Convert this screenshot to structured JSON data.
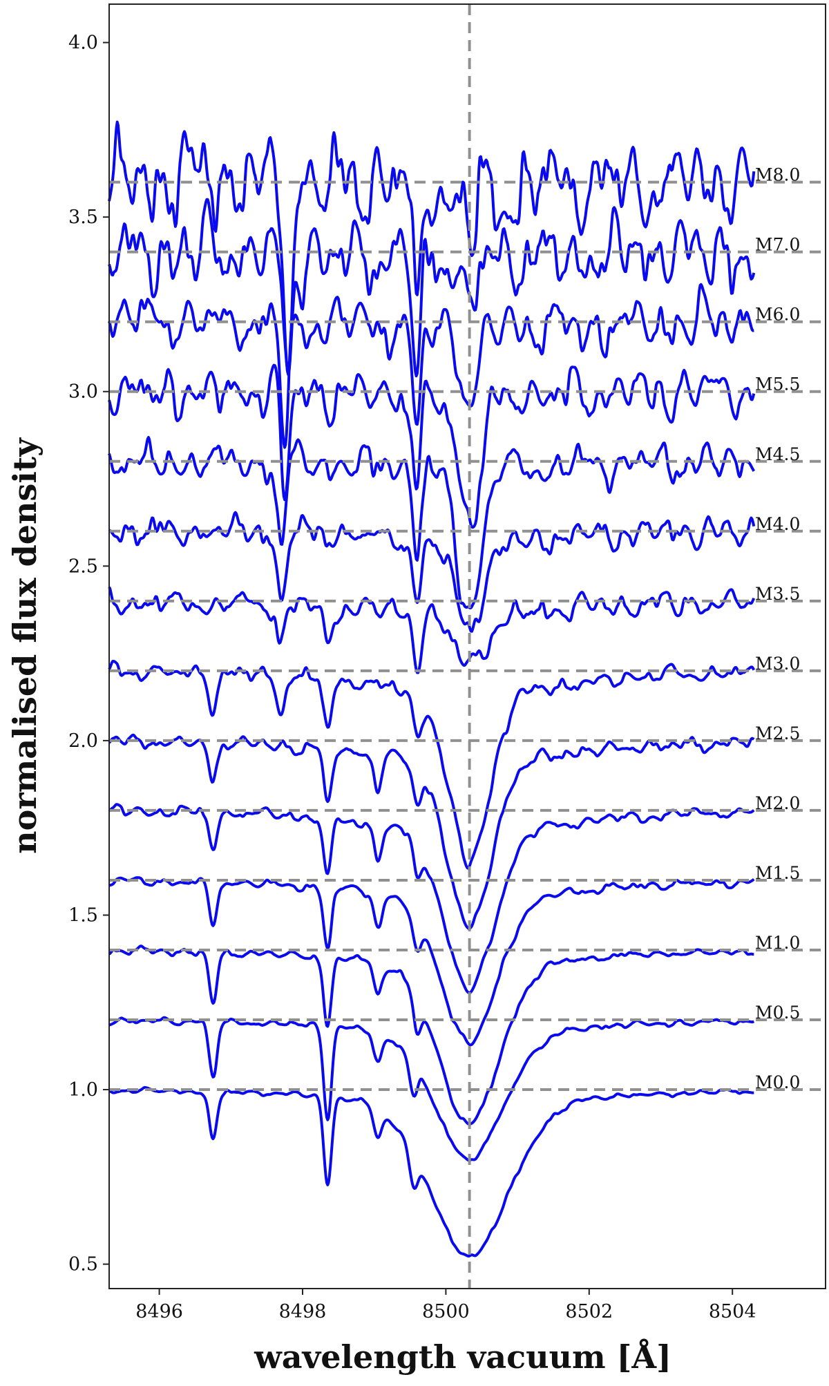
{
  "chart_data": {
    "type": "line",
    "xlabel": "wavelength vacuum [Å]",
    "ylabel": "normalised flux density",
    "xlim": [
      8495.3,
      8505.3
    ],
    "ylim": [
      0.43,
      4.11
    ],
    "x_ticks": [
      8496,
      8498,
      8500,
      8502,
      8504
    ],
    "x_tick_labels": [
      "8496",
      "8498",
      "8500",
      "8502",
      "8504"
    ],
    "y_ticks": [
      0.5,
      1.0,
      1.5,
      2.0,
      2.5,
      3.0,
      3.5,
      4.0
    ],
    "y_tick_labels": [
      "0.5",
      "1.0",
      "1.5",
      "2.0",
      "2.5",
      "3.0",
      "3.5",
      "4.0"
    ],
    "x_range_data": [
      8495.3,
      8504.3
    ],
    "line_center": 8500.33,
    "reference_lines": [
      {
        "label": "M0.0",
        "y": 1.0
      },
      {
        "label": "M0.5",
        "y": 1.2
      },
      {
        "label": "M1.0",
        "y": 1.4
      },
      {
        "label": "M1.5",
        "y": 1.6
      },
      {
        "label": "M2.0",
        "y": 1.8
      },
      {
        "label": "M2.5",
        "y": 2.0
      },
      {
        "label": "M3.0",
        "y": 2.2
      },
      {
        "label": "M3.5",
        "y": 2.4
      },
      {
        "label": "M4.0",
        "y": 2.6
      },
      {
        "label": "M4.5",
        "y": 2.8
      },
      {
        "label": "M5.5",
        "y": 3.0
      },
      {
        "label": "M6.0",
        "y": 3.2
      },
      {
        "label": "M7.0",
        "y": 3.4
      },
      {
        "label": "M8.0",
        "y": 3.6
      }
    ],
    "series": [
      {
        "name": "M0.0",
        "offset": 1.0,
        "line_depth": 0.4,
        "line_width": 0.55,
        "wing_depth": 0.08,
        "noise": 0.01,
        "features": [
          [
            8496.75,
            0.14
          ],
          [
            8498.35,
            0.25
          ],
          [
            8499.05,
            0.08
          ],
          [
            8499.55,
            0.08
          ]
        ]
      },
      {
        "name": "M0.5",
        "offset": 1.2,
        "line_depth": 0.33,
        "line_width": 0.48,
        "wing_depth": 0.07,
        "noise": 0.012,
        "features": [
          [
            8496.75,
            0.16
          ],
          [
            8498.35,
            0.26
          ],
          [
            8499.05,
            0.09
          ],
          [
            8499.55,
            0.09
          ]
        ]
      },
      {
        "name": "M1.0",
        "offset": 1.4,
        "line_depth": 0.42,
        "line_width": 0.42,
        "wing_depth": 0.08,
        "noise": 0.014,
        "features": [
          [
            8496.75,
            0.15
          ],
          [
            8498.35,
            0.2
          ],
          [
            8499.05,
            0.09
          ],
          [
            8499.6,
            0.1
          ]
        ]
      },
      {
        "name": "M1.5",
        "offset": 1.6,
        "line_depth": 0.38,
        "line_width": 0.38,
        "wing_depth": 0.09,
        "noise": 0.016,
        "features": [
          [
            8496.75,
            0.12
          ],
          [
            8498.35,
            0.17
          ],
          [
            8499.05,
            0.1
          ],
          [
            8499.6,
            0.1
          ]
        ]
      },
      {
        "name": "M2.0",
        "offset": 1.8,
        "line_depth": 0.42,
        "line_width": 0.34,
        "wing_depth": 0.1,
        "noise": 0.02,
        "features": [
          [
            8496.75,
            0.1
          ],
          [
            8498.35,
            0.17
          ],
          [
            8499.05,
            0.1
          ],
          [
            8499.6,
            0.1
          ]
        ]
      },
      {
        "name": "M2.5",
        "offset": 2.0,
        "line_depth": 0.44,
        "line_width": 0.3,
        "wing_depth": 0.1,
        "noise": 0.024,
        "features": [
          [
            8496.75,
            0.1
          ],
          [
            8498.35,
            0.16
          ],
          [
            8499.05,
            0.1
          ],
          [
            8499.6,
            0.1
          ]
        ]
      },
      {
        "name": "M3.0",
        "offset": 2.2,
        "line_depth": 0.45,
        "line_width": 0.28,
        "wing_depth": 0.1,
        "noise": 0.03,
        "features": [
          [
            8496.75,
            0.1
          ],
          [
            8497.7,
            0.1
          ],
          [
            8498.35,
            0.15
          ],
          [
            8499.6,
            0.12
          ]
        ]
      },
      {
        "name": "M3.5",
        "offset": 2.4,
        "line_depth": 0.12,
        "line_width": 0.22,
        "wing_depth": 0.06,
        "noise": 0.045,
        "features": [
          [
            8497.7,
            0.12
          ],
          [
            8498.35,
            0.12
          ],
          [
            8499.6,
            0.14
          ]
        ]
      },
      {
        "name": "M4.0",
        "offset": 2.6,
        "line_depth": 0.22,
        "line_width": 0.2,
        "wing_depth": 0.05,
        "noise": 0.055,
        "features": [
          [
            8497.7,
            0.2
          ],
          [
            8499.6,
            0.16
          ]
        ]
      },
      {
        "name": "M4.5",
        "offset": 2.8,
        "line_depth": 0.4,
        "line_width": 0.16,
        "wing_depth": 0.04,
        "noise": 0.07,
        "features": [
          [
            8497.7,
            0.25
          ],
          [
            8499.6,
            0.2
          ]
        ]
      },
      {
        "name": "M5.5",
        "offset": 3.0,
        "line_depth": 0.32,
        "line_width": 0.14,
        "wing_depth": 0.04,
        "noise": 0.09,
        "features": [
          [
            8497.75,
            0.3
          ],
          [
            8499.6,
            0.25
          ]
        ]
      },
      {
        "name": "M6.0",
        "offset": 3.2,
        "line_depth": 0.2,
        "line_width": 0.12,
        "wing_depth": 0.03,
        "noise": 0.1,
        "features": [
          [
            8497.75,
            0.32
          ],
          [
            8499.6,
            0.3
          ]
        ]
      },
      {
        "name": "M7.0",
        "offset": 3.4,
        "line_depth": 0.12,
        "line_width": 0.12,
        "wing_depth": 0.02,
        "noise": 0.14,
        "features": [
          [
            8497.8,
            0.4
          ],
          [
            8499.6,
            0.35
          ]
        ]
      },
      {
        "name": "M8.0",
        "offset": 3.6,
        "line_depth": 0.1,
        "line_width": 0.12,
        "wing_depth": 0.02,
        "noise": 0.17,
        "features": [
          [
            8497.8,
            0.5
          ],
          [
            8499.6,
            0.4
          ]
        ]
      }
    ],
    "colors": {
      "line": "#0a0aef",
      "reference": "#909090",
      "axes": "#222222"
    },
    "grid": false
  }
}
